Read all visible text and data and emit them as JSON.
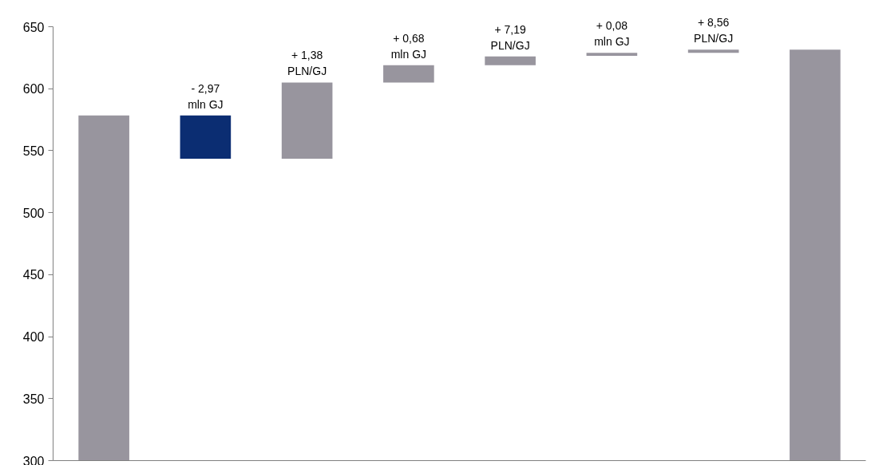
{
  "chart_data": {
    "type": "bar",
    "categories": [
      null,
      null,
      null,
      null,
      null,
      null,
      null,
      null
    ],
    "base": [
      300,
      543.5,
      543.5,
      605,
      619,
      626.5,
      629,
      300
    ],
    "values": [
      278.5,
      35,
      61.5,
      14,
      7,
      2.5,
      2.5,
      331.5
    ],
    "colors": [
      "#98959e",
      "#0b2d72",
      "#98959e",
      "#98959e",
      "#98959e",
      "#98959e",
      "#98959e",
      "#98959e"
    ],
    "annotations": [
      {
        "text": "- 2,97\nmln GJ",
        "y": 578.5
      },
      {
        "text": "+ 1,38\nPLN/GJ",
        "y": 605
      },
      {
        "text": "+ 0,68\nmln GJ",
        "y": 619
      },
      {
        "text": "+ 7,19\nPLN/GJ",
        "y": 626
      },
      {
        "text": "+ 0,08\nmln GJ",
        "y": 629
      },
      {
        "text": "+ 8,56\nPLN/GJ",
        "y": 631.5
      }
    ],
    "ylim": [
      300,
      650
    ],
    "yticks": [
      300,
      350,
      400,
      450,
      500,
      550,
      600,
      650
    ],
    "grid": false
  }
}
